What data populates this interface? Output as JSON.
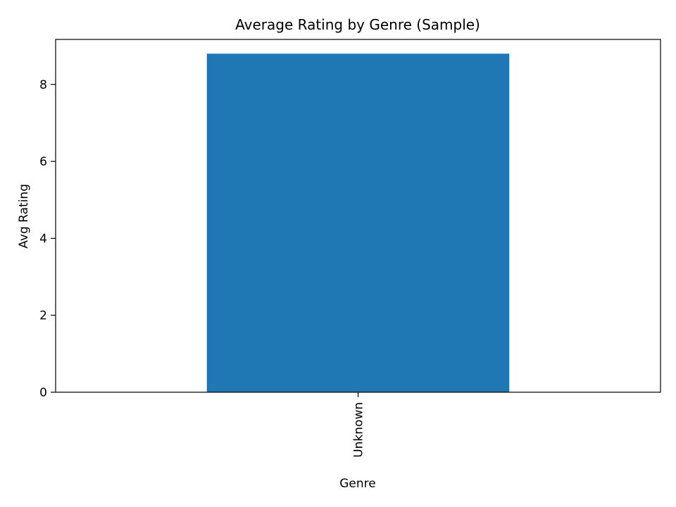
{
  "chart_data": {
    "type": "bar",
    "title": "Average Rating by Genre (Sample)",
    "xlabel": "Genre",
    "ylabel": "Avg Rating",
    "categories": [
      "Unknown"
    ],
    "values": [
      8.8
    ],
    "ylim": [
      0,
      9.17
    ],
    "yticks": [
      0,
      2,
      4,
      6,
      8
    ],
    "grid": false,
    "legend": "none",
    "bar_color": "#1f77b4"
  }
}
